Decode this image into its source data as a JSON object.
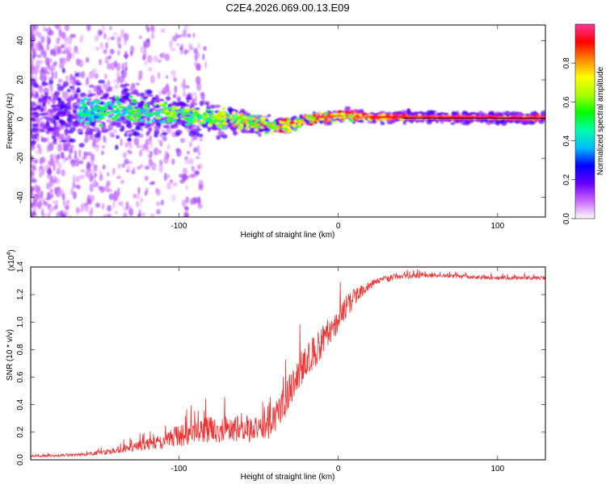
{
  "title": "C2E4.2026.069.00.13.E09",
  "chart_data": [
    {
      "type": "heatmap",
      "xlabel": "Height of straight line (km)",
      "ylabel": "Frequency (Hz)",
      "xlim": [
        -193,
        130
      ],
      "ylim": [
        -50,
        48
      ],
      "x_ticks": [
        {
          "v": -100,
          "label": "-100"
        },
        {
          "v": 0,
          "label": "0"
        },
        {
          "v": 100,
          "label": "100"
        }
      ],
      "y_ticks": [
        {
          "v": -40,
          "label": "-40"
        },
        {
          "v": -20,
          "label": "-20"
        },
        {
          "v": 0,
          "label": "0"
        },
        {
          "v": 20,
          "label": "20"
        },
        {
          "v": 40,
          "label": "40"
        }
      ],
      "ridge_frequency_profile": [
        {
          "x": -190,
          "f": 3.0
        },
        {
          "x": -150,
          "f": 4.0
        },
        {
          "x": -120,
          "f": 3.5
        },
        {
          "x": -100,
          "f": 2.5
        },
        {
          "x": -80,
          "f": 0.5
        },
        {
          "x": -60,
          "f": -1.0
        },
        {
          "x": -40,
          "f": -3.5
        },
        {
          "x": -30,
          "f": -3.0
        },
        {
          "x": -20,
          "f": 0.0
        },
        {
          "x": -5,
          "f": 1.0
        },
        {
          "x": 5,
          "f": 2.0
        },
        {
          "x": 20,
          "f": 1.0
        },
        {
          "x": 130,
          "f": 0.5
        }
      ],
      "colorbar": {
        "label": "Normalized spectral amplitude",
        "range": [
          0,
          1
        ],
        "ticks": [
          {
            "v": 0.0,
            "label": "0.0"
          },
          {
            "v": 0.2,
            "label": "0.2"
          },
          {
            "v": 0.4,
            "label": "0.4"
          },
          {
            "v": 0.6,
            "label": "0.6"
          },
          {
            "v": 0.8,
            "label": "0.8"
          }
        ],
        "colors": [
          "#ffffff",
          "#cc66ff",
          "#6600ff",
          "#0000ff",
          "#00bbff",
          "#00ffaa",
          "#00ff00",
          "#aaff00",
          "#ffff00",
          "#ff8800",
          "#ff0000",
          "#ff3399"
        ]
      }
    },
    {
      "type": "line",
      "xlabel": "Height of straight line (km)",
      "ylabel": "SNR (10 * v/v)",
      "multiplier_label": "(x10",
      "multiplier_exp": "4",
      "multiplier_close": ")",
      "xlim": [
        -193,
        130
      ],
      "ylim": [
        0,
        1.4
      ],
      "line_color": "#ee3333",
      "x_ticks": [
        {
          "v": -100,
          "label": "-100"
        },
        {
          "v": 0,
          "label": "0"
        },
        {
          "v": 100,
          "label": "100"
        }
      ],
      "y_ticks": [
        {
          "v": 0.0,
          "label": "0.0"
        },
        {
          "v": 0.2,
          "label": "0.2"
        },
        {
          "v": 0.4,
          "label": "0.4"
        },
        {
          "v": 0.6,
          "label": "0.6"
        },
        {
          "v": 0.8,
          "label": "0.8"
        },
        {
          "v": 1.0,
          "label": "1.0"
        },
        {
          "v": 1.2,
          "label": "1.2"
        },
        {
          "v": 1.4,
          "label": "1.4"
        }
      ],
      "envelope": [
        {
          "x": -193,
          "base": 0.02,
          "spread": 0.02
        },
        {
          "x": -160,
          "base": 0.03,
          "spread": 0.03
        },
        {
          "x": -140,
          "base": 0.05,
          "spread": 0.06
        },
        {
          "x": -120,
          "base": 0.08,
          "spread": 0.12
        },
        {
          "x": -100,
          "base": 0.12,
          "spread": 0.22
        },
        {
          "x": -80,
          "base": 0.15,
          "spread": 0.28
        },
        {
          "x": -60,
          "base": 0.16,
          "spread": 0.28
        },
        {
          "x": -45,
          "base": 0.15,
          "spread": 0.25
        },
        {
          "x": -35,
          "base": 0.3,
          "spread": 0.35
        },
        {
          "x": -25,
          "base": 0.55,
          "spread": 0.35
        },
        {
          "x": -15,
          "base": 0.7,
          "spread": 0.35
        },
        {
          "x": -5,
          "base": 0.85,
          "spread": 0.3
        },
        {
          "x": 5,
          "base": 1.05,
          "spread": 0.25
        },
        {
          "x": 15,
          "base": 1.2,
          "spread": 0.12
        },
        {
          "x": 25,
          "base": 1.28,
          "spread": 0.08
        },
        {
          "x": 40,
          "base": 1.32,
          "spread": 0.06
        },
        {
          "x": 60,
          "base": 1.33,
          "spread": 0.04
        },
        {
          "x": 100,
          "base": 1.31,
          "spread": 0.04
        },
        {
          "x": 130,
          "base": 1.31,
          "spread": 0.04
        }
      ]
    }
  ]
}
